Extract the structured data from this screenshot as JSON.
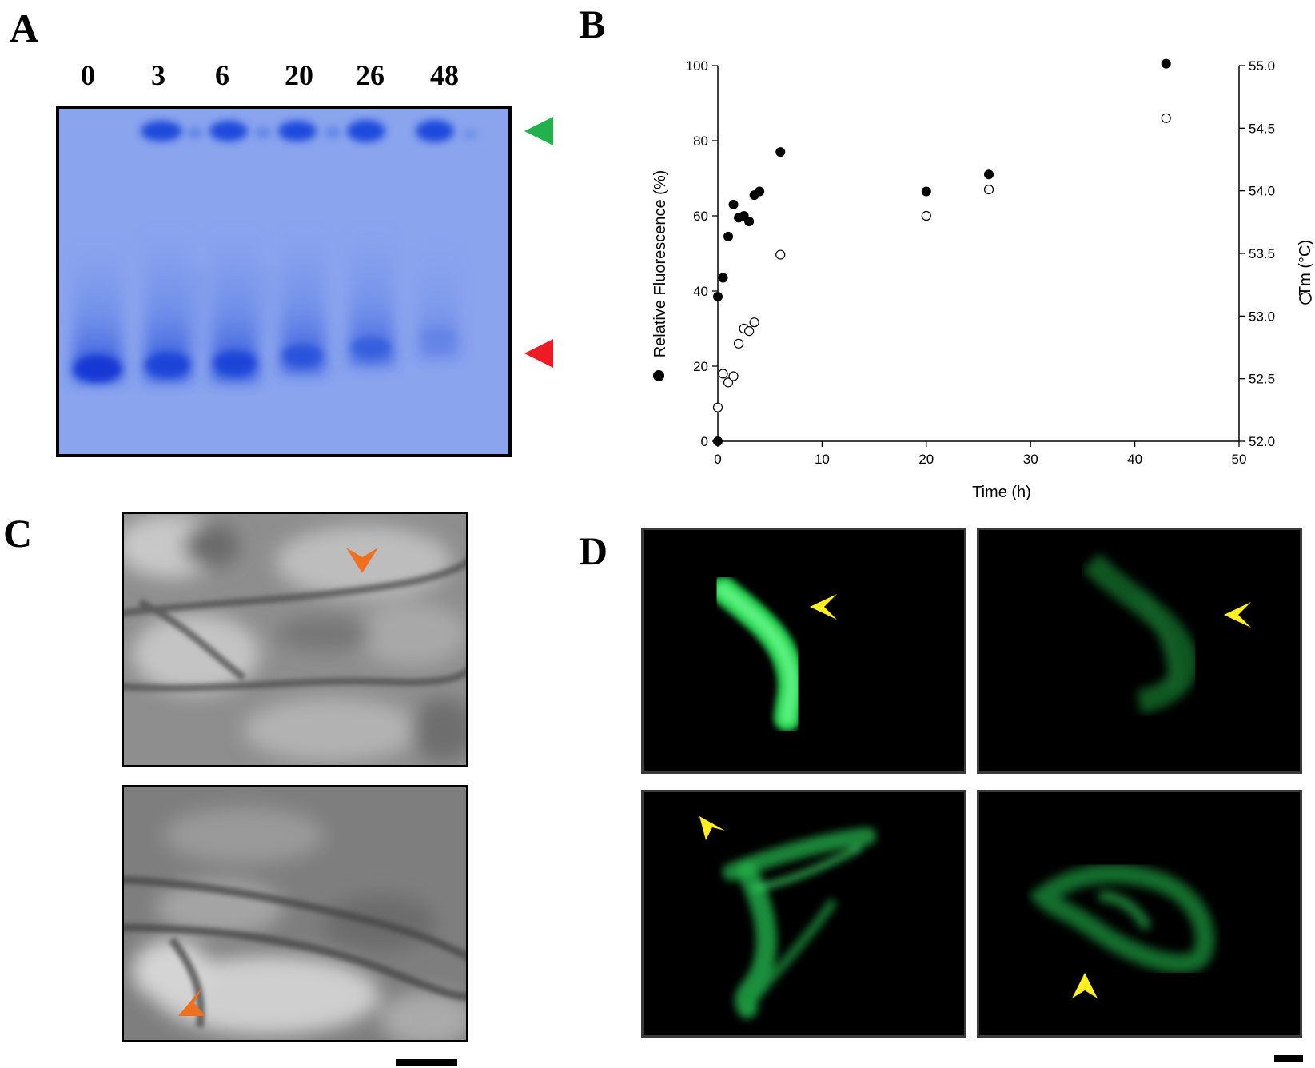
{
  "panels": {
    "a": {
      "label": "A",
      "lanes": [
        "0",
        "3",
        "6",
        "20",
        "26",
        "48"
      ],
      "upper_marker_color": "#22b14c",
      "lower_marker_color": "#ed1c24"
    },
    "b": {
      "label": "B"
    },
    "c": {
      "label": "C",
      "arrow_color": "#f07020"
    },
    "d": {
      "label": "D",
      "arrow_color": "#ffee22",
      "fluor_color": "#2ee05a"
    }
  },
  "chart_data": {
    "type": "scatter",
    "xlabel": "Time (h)",
    "ylabel": "Relative Fluorescence (%)",
    "y2label": "Tm (°C)",
    "xlim": [
      0,
      50
    ],
    "ylim": [
      0,
      100
    ],
    "y2lim": [
      52.0,
      55.0
    ],
    "xticks": [
      "0",
      "10",
      "20",
      "30",
      "40",
      "50"
    ],
    "yticks": [
      "0",
      "20",
      "40",
      "60",
      "80",
      "100"
    ],
    "y2ticks": [
      "52.0",
      "52.5",
      "53.0",
      "53.5",
      "54.0",
      "54.5",
      "55.0"
    ],
    "grid": false,
    "series": [
      {
        "marker": "filled-circle",
        "axis": "left",
        "x": [
          0,
          0,
          0.5,
          1,
          1.5,
          2,
          2.5,
          3,
          3.5,
          4,
          6,
          20,
          26,
          43
        ],
        "y": [
          0,
          38.5,
          43.5,
          54.5,
          63,
          59.5,
          60,
          58.5,
          65.5,
          66.5,
          77,
          66.5,
          71,
          100.5
        ]
      },
      {
        "marker": "open-circle",
        "axis": "right",
        "x": [
          0,
          0.5,
          1,
          1.5,
          2,
          2.5,
          3,
          3.5,
          6,
          20,
          26,
          43
        ],
        "y": [
          52.27,
          52.54,
          52.47,
          52.52,
          52.78,
          52.9,
          52.88,
          52.95,
          53.49,
          53.8,
          54.01,
          54.58
        ]
      }
    ]
  }
}
